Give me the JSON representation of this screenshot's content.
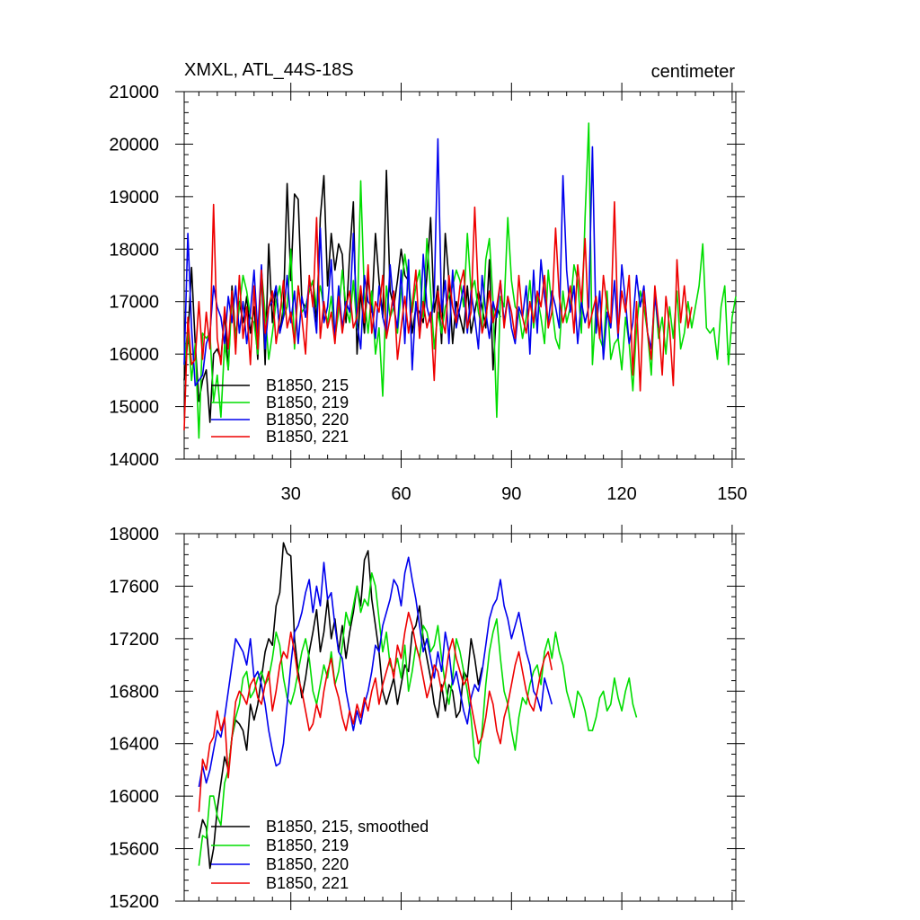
{
  "chart_data": [
    {
      "type": "line",
      "title": "XMXL, ATL_44S-18S",
      "units": "centimeter",
      "xlabel": "",
      "ylabel": "",
      "xlim": [
        1,
        151
      ],
      "ylim": [
        14000,
        21000
      ],
      "xticks": [
        30,
        60,
        90,
        120,
        150
      ],
      "yticks": [
        14000,
        15000,
        16000,
        17000,
        18000,
        19000,
        20000,
        21000
      ],
      "legend_position": "bottom-left",
      "series": [
        {
          "name": "B1850, 215",
          "color": "#000000",
          "x_start": 1,
          "values": [
            15500,
            16300,
            17650,
            16200,
            15100,
            15500,
            15700,
            14700,
            16000,
            16100,
            15900,
            16800,
            15700,
            17300,
            16300,
            17000,
            16600,
            17100,
            16400,
            16900,
            15900,
            17600,
            15800,
            18100,
            16600,
            17300,
            16400,
            16900,
            19250,
            17400,
            19050,
            18950,
            17000,
            16900,
            17200,
            17400,
            16600,
            18600,
            19400,
            17300,
            18300,
            17600,
            18100,
            17900,
            16600,
            17900,
            18900,
            16000,
            17200,
            16400,
            17500,
            16800,
            18300,
            17400,
            16700,
            19500,
            17200,
            16900,
            17400,
            18000,
            17500,
            17400,
            16400,
            16900,
            16800,
            16600,
            17500,
            18600,
            16800,
            17300,
            16200,
            18300,
            17400,
            16200,
            17000,
            16700,
            16400,
            17300,
            16400,
            16800,
            17200,
            16900,
            16500,
            17800,
            15700,
            16900,
            16700
          ]
        },
        {
          "name": "B1850, 219",
          "color": "#00dd00",
          "x_start": 1,
          "values": [
            15800,
            16500,
            15500,
            16200,
            14400,
            16400,
            16300,
            16400,
            15100,
            15600,
            14800,
            16200,
            15700,
            17100,
            16300,
            16900,
            17500,
            17200,
            16700,
            16600,
            16000,
            17600,
            16800,
            15900,
            16400,
            17000,
            17300,
            16700,
            16900,
            18000,
            16100,
            17300,
            16800,
            16900,
            17200,
            17400,
            16900,
            17300,
            16900,
            16600,
            17100,
            16300,
            16800,
            17600,
            16900,
            16600,
            17400,
            16500,
            19300,
            17100,
            16400,
            17200,
            16000,
            16500,
            15200,
            17300,
            16700,
            16900,
            16400,
            17200,
            17900,
            17400,
            16800,
            17300,
            17600,
            16700,
            18200,
            17200,
            16100,
            16800,
            16400,
            16900,
            17100,
            17300,
            17600,
            17400,
            16900,
            18300,
            17200,
            17400,
            16800,
            16500,
            17800,
            18200,
            17000,
            14800,
            17100,
            16900,
            18600,
            17400,
            16900,
            16800,
            16300,
            16700,
            17400,
            16500,
            17100,
            16700,
            16200,
            17600,
            16900,
            16300,
            16100,
            17200,
            16600,
            16900,
            17700,
            17400,
            16400,
            18600,
            20400,
            15800,
            16900,
            16300,
            16100,
            17200,
            15900,
            16200,
            16300,
            15700,
            16700,
            16200,
            15300,
            16500,
            17200,
            16900,
            16400,
            15600,
            17200,
            16300,
            16700,
            16000,
            16900,
            16300,
            17200,
            16100,
            16400,
            17000,
            16500,
            16900,
            17300,
            18100,
            16500,
            16400,
            16500,
            15900,
            16900,
            17300,
            15800,
            16700,
            17100
          ]
        },
        {
          "name": "B1850, 220",
          "color": "#0000ee",
          "x_start": 1,
          "values": [
            15800,
            18300,
            16500,
            15400,
            15500,
            15600,
            16200,
            16400,
            17300,
            16900,
            16700,
            16200,
            17100,
            16600,
            17300,
            16400,
            17000,
            16200,
            16800,
            17600,
            16400,
            17700,
            16100,
            16900,
            17000,
            17300,
            16400,
            16700,
            17500,
            16600,
            17200,
            16200,
            17100,
            16700,
            17400,
            17000,
            16400,
            18400,
            16600,
            16900,
            17800,
            16300,
            17300,
            16500,
            17000,
            16800,
            18300,
            16600,
            16100,
            17500,
            17000,
            16900,
            16300,
            17300,
            16700,
            16400,
            17700,
            16900,
            16500,
            17600,
            16200,
            17800,
            15700,
            17000,
            16400,
            17900,
            16900,
            16600,
            17100,
            20100,
            16800,
            17400,
            16200,
            17600,
            16500,
            16900,
            17300,
            16400,
            17200,
            16700,
            16100,
            17500,
            16800,
            16300,
            17000,
            16700,
            17400,
            16600,
            17100,
            16500,
            16200,
            16900,
            16700,
            17300,
            16000,
            17600,
            16400,
            17800,
            17100,
            16600,
            17200,
            16900,
            16500,
            19400,
            17600,
            16800,
            17300,
            16200,
            17000,
            16600,
            16900,
            19950,
            16400,
            17200,
            15900,
            16800,
            16500,
            17400,
            16300,
            17700,
            17000,
            16200,
            16600,
            17500,
            16900,
            17300,
            16400,
            16100,
            17100,
            16500
          ]
        },
        {
          "name": "B1850, 221",
          "color": "#ee0000",
          "x_start": 1,
          "values": [
            14550,
            16700,
            15800,
            15900,
            17000,
            15900,
            16800,
            16100,
            18850,
            16300,
            15800,
            16900,
            16100,
            17200,
            16000,
            17500,
            16300,
            16900,
            15800,
            17300,
            16100,
            17600,
            16400,
            16900,
            17200,
            16200,
            16700,
            17400,
            16500,
            16800,
            16200,
            17300,
            16700,
            16000,
            17500,
            16900,
            18600,
            16300,
            17000,
            16500,
            16800,
            16200,
            17100,
            16400,
            16900,
            17200,
            16500,
            16700,
            17300,
            16600,
            17700,
            16400,
            17000,
            16800,
            17500,
            16300,
            16700,
            17200,
            15900,
            16500,
            17100,
            16400,
            16900,
            17600,
            16300,
            17000,
            16500,
            16800,
            15500,
            17200,
            16700,
            16400,
            17500,
            16900,
            16600,
            17300,
            17600,
            16500,
            16800,
            18800,
            17100,
            16400,
            16700,
            17200,
            16600,
            16900,
            17400,
            16500,
            17100,
            16800,
            16300,
            17500,
            16700,
            16400,
            17000,
            16600,
            17200,
            16900,
            17500,
            16500,
            16800,
            18400,
            17100,
            16600,
            16900,
            17300,
            16400,
            17700,
            17000,
            18200,
            16500,
            16800,
            17100,
            16300,
            17500,
            16900,
            16600,
            18900,
            16400,
            17200,
            16800,
            17500,
            15600,
            17000,
            15300,
            17200,
            16400,
            15900,
            17300,
            16600,
            15600,
            17100,
            16500,
            15400,
            17800,
            16600,
            17300,
            16500,
            16900
          ]
        }
      ]
    },
    {
      "type": "line",
      "title": "",
      "xlabel": "",
      "ylabel": "",
      "xlim": [
        1,
        151
      ],
      "ylim": [
        15200,
        18000
      ],
      "xticks": [
        30,
        60,
        90,
        120,
        150
      ],
      "yticks": [
        15200,
        15600,
        16000,
        16400,
        16800,
        17200,
        17600,
        18000
      ],
      "legend_position": "bottom-left",
      "series": [
        {
          "name": "B1850, 215, smoothed",
          "color": "#000000",
          "x_start": 5,
          "values": [
            15680,
            15820,
            15760,
            15450,
            15600,
            15900,
            16100,
            16300,
            16200,
            16450,
            16580,
            16550,
            16500,
            16350,
            16700,
            16580,
            16700,
            16900,
            17100,
            17200,
            17150,
            17450,
            17550,
            17930,
            17850,
            17830,
            17200,
            16950,
            16750,
            16900,
            17100,
            17250,
            17420,
            17100,
            17250,
            17500,
            17200,
            17350,
            17100,
            17300,
            17050,
            17250,
            17400,
            17600,
            17450,
            17800,
            17870,
            17500,
            17300,
            17100,
            16800,
            16700,
            16800,
            16900,
            16700,
            16850,
            17000,
            16950,
            17250,
            17300,
            17450,
            17200,
            17050,
            16900,
            16700,
            16600,
            16850,
            16650,
            16850,
            16800,
            16600,
            16650,
            16950,
            16900,
            17200,
            17050,
            16850,
            16980
          ]
        },
        {
          "name": "B1850, 219",
          "color": "#00dd00",
          "x_start": 5,
          "values": [
            15470,
            15700,
            15680,
            16000,
            16000,
            15850,
            15780,
            16100,
            16200,
            16450,
            16600,
            16700,
            16900,
            16950,
            16750,
            16800,
            16900,
            16950,
            16850,
            16900,
            17050,
            17250,
            17150,
            16900,
            16750,
            16700,
            16800,
            16950,
            17100,
            17200,
            17050,
            16800,
            16700,
            16850,
            17000,
            16900,
            17100,
            16850,
            16950,
            17150,
            17400,
            17300,
            17450,
            17600,
            17400,
            17500,
            17450,
            17700,
            17600,
            17350,
            17100,
            17250,
            17000,
            16950,
            17050,
            16900,
            17150,
            16800,
            16950,
            17150,
            17050,
            17300,
            17250,
            17100,
            17150,
            17300,
            17050,
            16850,
            16700,
            16900,
            17200,
            17100,
            16950,
            16800,
            16600,
            16300,
            16250,
            16500,
            16850,
            17100,
            17250,
            17350,
            17050,
            16800,
            16700,
            16500,
            16350,
            16600,
            16750,
            16700,
            16850,
            16950,
            17000,
            16850,
            17100,
            17200,
            17050,
            17250,
            17100,
            17000,
            16800,
            16700,
            16600,
            16800,
            16750,
            16650,
            16500,
            16500,
            16600,
            16750,
            16800,
            16650,
            16700,
            16900,
            16750,
            16650,
            16800,
            16900,
            16700,
            16600
          ]
        },
        {
          "name": "B1850, 220",
          "color": "#0000ee",
          "x_start": 5,
          "values": [
            16070,
            16230,
            16100,
            16200,
            16350,
            16500,
            16450,
            16600,
            16800,
            17000,
            17200,
            17150,
            17100,
            17000,
            17200,
            16900,
            16950,
            16850,
            16700,
            16500,
            16350,
            16230,
            16250,
            16400,
            16700,
            17000,
            17250,
            17300,
            17400,
            17550,
            17650,
            17400,
            17600,
            17450,
            17780,
            17500,
            17550,
            17300,
            17100,
            17050,
            16800,
            16650,
            16500,
            16650,
            16550,
            16700,
            16800,
            16950,
            17150,
            17100,
            17300,
            17400,
            17500,
            17650,
            17600,
            17450,
            17700,
            17820,
            17650,
            17500,
            17300,
            17100,
            17200,
            17050,
            16900,
            17100,
            16950,
            17250,
            17100,
            16850,
            16950,
            16800,
            16650,
            16550,
            16750,
            16850,
            16800,
            16950,
            17150,
            17350,
            17450,
            17500,
            17650,
            17450,
            17350,
            17200,
            17300,
            17400,
            17250,
            17100,
            17000,
            16800,
            16750,
            16650,
            16900,
            16800,
            16700
          ]
        },
        {
          "name": "B1850, 221",
          "color": "#ee0000",
          "x_start": 5,
          "values": [
            15880,
            16280,
            16200,
            16400,
            16450,
            16650,
            16500,
            16600,
            16140,
            16450,
            16720,
            16800,
            16760,
            16700,
            16850,
            16900,
            16750,
            16700,
            16850,
            16950,
            16650,
            16800,
            17000,
            17100,
            17050,
            17250,
            17100,
            16900,
            16800,
            16650,
            16500,
            16550,
            16700,
            16600,
            16800,
            16950,
            17050,
            16850,
            16750,
            16600,
            16500,
            16650,
            16550,
            16700,
            16600,
            16750,
            16650,
            16800,
            16900,
            16700,
            16850,
            16950,
            17050,
            16900,
            17150,
            17050,
            17250,
            17400,
            17300,
            17150,
            17050,
            16900,
            16750,
            16850,
            17000,
            16950,
            16800,
            16900,
            17100,
            17200,
            17050,
            16950,
            16850,
            16900,
            16700,
            16550,
            16400,
            16450,
            16600,
            16800,
            16700,
            16500,
            16400,
            16600,
            16700,
            16850,
            17000,
            17100,
            16950,
            16800,
            16700,
            16650,
            16800,
            16950,
            17050,
            17100,
            16960
          ]
        }
      ]
    }
  ]
}
